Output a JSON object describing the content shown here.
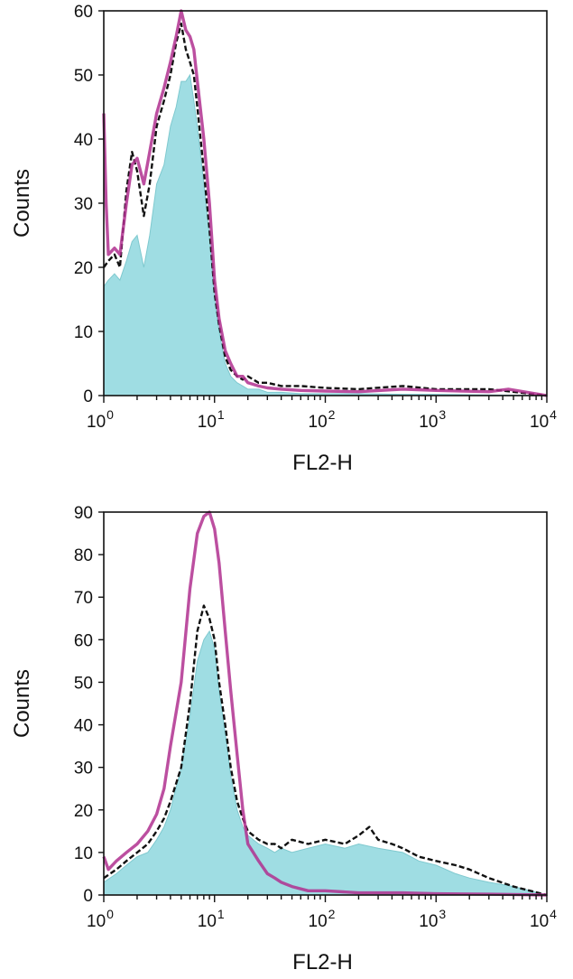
{
  "chart_data": [
    {
      "type": "area",
      "xlabel": "FL2-H",
      "ylabel": "Counts",
      "xscale": "log",
      "xlim": [
        1,
        10000
      ],
      "ylim": [
        0,
        60
      ],
      "yticks": [
        0,
        10,
        20,
        30,
        40,
        50,
        60
      ],
      "xticks": [
        {
          "base": "10",
          "exp": "0"
        },
        {
          "base": "10",
          "exp": "1"
        },
        {
          "base": "10",
          "exp": "2"
        },
        {
          "base": "10",
          "exp": "3"
        },
        {
          "base": "10",
          "exp": "4"
        }
      ],
      "grid": false,
      "colors": {
        "filled": "#9fdde3",
        "filled_edge": "#7fc9cf",
        "black_line": "#111111",
        "magenta_line": "#b0308f"
      },
      "series": [
        {
          "style": "filled",
          "x": [
            1.0,
            1.1,
            1.25,
            1.4,
            1.6,
            1.8,
            2.0,
            2.3,
            2.6,
            3.0,
            3.5,
            4.0,
            4.5,
            5.0,
            5.5,
            6.0,
            6.5,
            7.0,
            8.0,
            9.0,
            10.0,
            11.0,
            12.5,
            14.0,
            16.0,
            18.0,
            20.0,
            25.0,
            30.0,
            40.0,
            60.0,
            100.0,
            200.0,
            500.0,
            1000.0,
            3000.0,
            10000.0
          ],
          "y": [
            17,
            18,
            19,
            18,
            21,
            24,
            25,
            20,
            25,
            33,
            36,
            42,
            45,
            49,
            49,
            50,
            46,
            42,
            33,
            25,
            15,
            10,
            5,
            3,
            2,
            1.5,
            1,
            1,
            0.5,
            0.5,
            0.3,
            0.3,
            0.3,
            0.2,
            0.2,
            0.1,
            0
          ]
        },
        {
          "style": "black-line",
          "x": [
            1.0,
            1.1,
            1.25,
            1.4,
            1.6,
            1.8,
            2.0,
            2.3,
            2.6,
            3.0,
            3.5,
            4.0,
            4.5,
            5.0,
            5.5,
            6.0,
            6.5,
            7.0,
            8.0,
            9.0,
            10.0,
            11.0,
            12.5,
            14.0,
            16.0,
            18.0,
            20.0,
            25.0,
            30.0,
            40.0,
            60.0,
            100.0,
            200.0,
            500.0,
            1000.0,
            3000.0,
            10000.0
          ],
          "y": [
            20,
            21,
            22,
            20,
            32,
            38,
            35,
            28,
            33,
            42,
            46,
            50,
            55,
            58,
            54,
            52,
            50,
            45,
            35,
            26,
            16,
            11,
            6,
            4,
            3,
            2.5,
            3,
            2,
            2,
            1.5,
            1.5,
            1.2,
            1,
            1.5,
            1,
            1,
            0
          ]
        },
        {
          "style": "magenta-line",
          "x": [
            1.0,
            1.05,
            1.1,
            1.25,
            1.4,
            1.6,
            1.8,
            2.0,
            2.3,
            2.6,
            3.0,
            3.5,
            4.0,
            4.5,
            5.0,
            5.5,
            6.0,
            6.5,
            7.0,
            8.0,
            9.0,
            10.0,
            11.0,
            12.5,
            14.0,
            16.0,
            18.0,
            20.0,
            25.0,
            30.0,
            40.0,
            60.0,
            100.0,
            200.0,
            500.0,
            1000.0,
            3000.0,
            4500.0,
            10000.0
          ],
          "y": [
            44,
            30,
            22,
            23,
            22,
            30,
            36,
            37,
            33,
            38,
            44,
            48,
            52,
            56,
            60,
            57,
            56,
            54,
            49,
            40,
            30,
            18,
            12,
            7,
            5,
            3,
            3,
            2,
            1.5,
            1.2,
            1,
            0.8,
            0.7,
            0.6,
            1,
            0.8,
            0.6,
            1,
            0
          ]
        }
      ]
    },
    {
      "type": "area",
      "xlabel": "FL2-H",
      "ylabel": "Counts",
      "xscale": "log",
      "xlim": [
        1,
        10000
      ],
      "ylim": [
        0,
        90
      ],
      "yticks": [
        0,
        10,
        20,
        30,
        40,
        50,
        60,
        70,
        80,
        90
      ],
      "xticks": [
        {
          "base": "10",
          "exp": "0"
        },
        {
          "base": "10",
          "exp": "1"
        },
        {
          "base": "10",
          "exp": "2"
        },
        {
          "base": "10",
          "exp": "3"
        },
        {
          "base": "10",
          "exp": "4"
        }
      ],
      "grid": false,
      "colors": {
        "filled": "#9fdde3",
        "filled_edge": "#7fc9cf",
        "black_line": "#111111",
        "magenta_line": "#b0308f"
      },
      "series": [
        {
          "style": "filled",
          "x": [
            1.0,
            1.3,
            1.6,
            2.0,
            2.5,
            3.0,
            3.5,
            4.0,
            5.0,
            6.0,
            7.0,
            8.0,
            9.0,
            10.0,
            11.0,
            12.5,
            14.0,
            16.0,
            18.0,
            20.0,
            25.0,
            30.0,
            35.0,
            40.0,
            50.0,
            70.0,
            100.0,
            150.0,
            200.0,
            300.0,
            500.0,
            700.0,
            1000.0,
            1500.0,
            2000.0,
            3000.0,
            5000.0,
            10000.0
          ],
          "y": [
            3,
            5,
            7,
            9,
            10,
            13,
            16,
            20,
            30,
            42,
            55,
            60,
            62,
            58,
            48,
            38,
            28,
            20,
            16,
            14,
            12,
            11,
            10,
            11,
            10,
            11,
            12,
            11,
            12,
            11,
            10,
            8,
            7,
            5,
            4,
            3,
            2,
            0
          ]
        },
        {
          "style": "black-line",
          "x": [
            1.0,
            1.3,
            1.6,
            2.0,
            2.5,
            3.0,
            3.5,
            4.0,
            5.0,
            6.0,
            7.0,
            8.0,
            9.0,
            10.0,
            11.0,
            12.5,
            14.0,
            16.0,
            18.0,
            20.0,
            25.0,
            30.0,
            35.0,
            40.0,
            50.0,
            70.0,
            100.0,
            150.0,
            200.0,
            250.0,
            300.0,
            400.0,
            500.0,
            700.0,
            1000.0,
            1500.0,
            2000.0,
            3000.0,
            5000.0,
            10000.0
          ],
          "y": [
            4,
            6,
            8,
            10,
            12,
            15,
            18,
            22,
            30,
            45,
            62,
            68,
            65,
            60,
            50,
            40,
            30,
            22,
            18,
            15,
            13,
            12,
            12,
            11,
            13,
            12,
            13,
            12,
            14,
            16,
            13,
            12,
            11,
            9,
            8,
            7,
            6,
            4,
            2,
            0
          ]
        },
        {
          "style": "magenta-line",
          "x": [
            1.0,
            1.1,
            1.3,
            1.6,
            2.0,
            2.5,
            3.0,
            3.5,
            4.0,
            5.0,
            6.0,
            7.0,
            8.0,
            9.0,
            10.0,
            11.0,
            12.5,
            14.0,
            16.0,
            18.0,
            20.0,
            25.0,
            30.0,
            35.0,
            40.0,
            50.0,
            70.0,
            100.0,
            200.0,
            500.0,
            1000.0,
            3000.0,
            10000.0
          ],
          "y": [
            9,
            6,
            8,
            10,
            12,
            15,
            19,
            25,
            35,
            50,
            72,
            85,
            89,
            90,
            86,
            78,
            62,
            48,
            33,
            20,
            12,
            8,
            5,
            4,
            3,
            2,
            1,
            1,
            0.5,
            0.5,
            0.3,
            0.2,
            0
          ]
        }
      ]
    }
  ]
}
